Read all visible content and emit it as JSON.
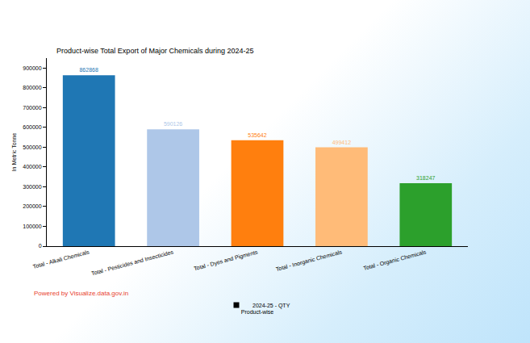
{
  "chart_data": {
    "type": "bar",
    "title": "Product-wise Total Export of Major Chemicals during 2024-25",
    "x_label": "Product-wise",
    "y_label": "In Metric Tonne",
    "categories": [
      "Total - Alkali Chemicals",
      "Total - Pesticides and Insecticides",
      "Total - Dyes and Pigments",
      "Total - Inorganic Chemicals",
      "Total - Organic Chemicals"
    ],
    "series": [
      {
        "name": "2024-25 - QTY",
        "values": [
          862868,
          590126,
          535642,
          499412,
          318247
        ],
        "colors": [
          "#1f77b4",
          "#aec7e8",
          "#ff7f0e",
          "#ffbb78",
          "#2ca02c"
        ]
      }
    ],
    "ylim": [
      0,
      950000
    ],
    "yticks": [
      0,
      100000,
      200000,
      300000,
      400000,
      500000,
      600000,
      700000,
      800000,
      900000
    ],
    "grid": false,
    "legend": "bottom",
    "data_labels": true,
    "annotations": [
      "Powered by Visualize.data.gov.in"
    ]
  }
}
